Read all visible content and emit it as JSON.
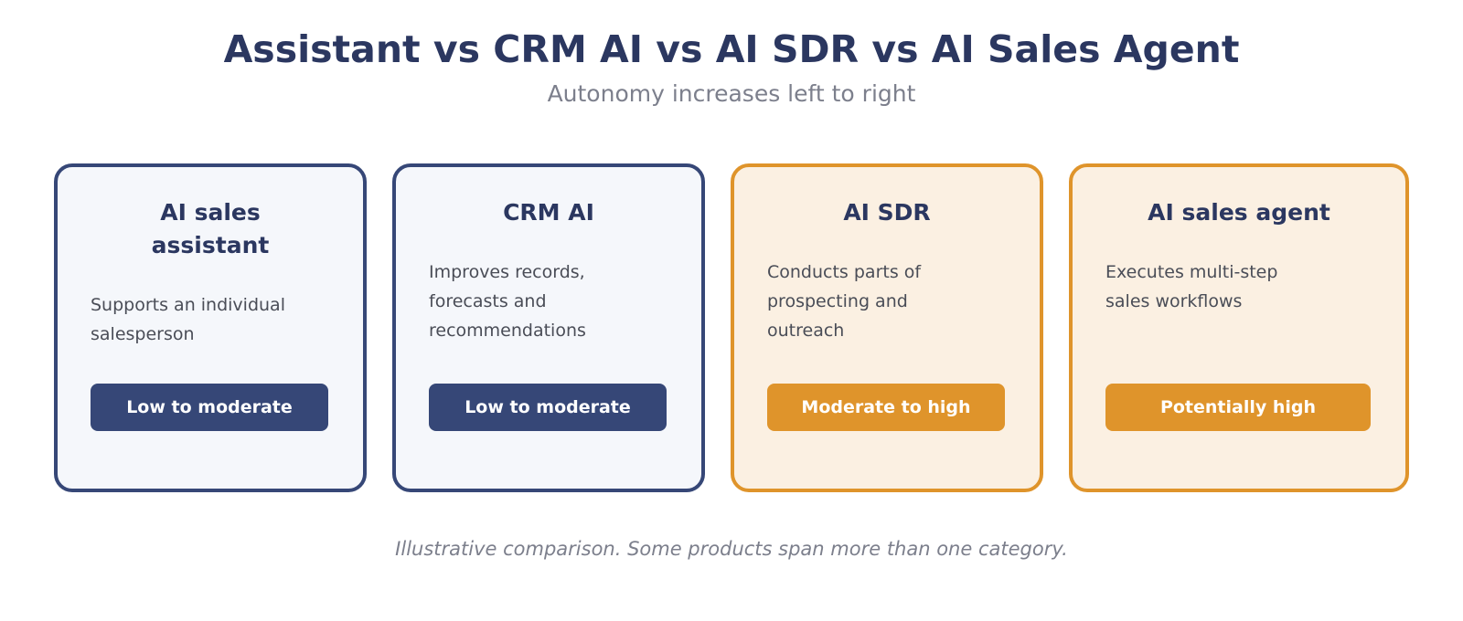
{
  "header": {
    "title": "Assistant vs CRM AI vs AI SDR vs AI Sales Agent",
    "subtitle": "Autonomy increases left to right"
  },
  "cards": [
    {
      "title": "AI sales assistant",
      "description": "Supports an individual salesperson",
      "autonomy": "Low to moderate",
      "accent": "#364777"
    },
    {
      "title": "CRM AI",
      "description": "Improves records, forecasts and recommendations",
      "autonomy": "Low to moderate",
      "accent": "#364777"
    },
    {
      "title": "AI SDR",
      "description": "Conducts parts of prospecting and outreach",
      "autonomy": "Moderate to high",
      "accent": "#df942b"
    },
    {
      "title": "AI sales agent",
      "description": "Executes multi-step sales workflows",
      "autonomy": "Potentially high",
      "accent": "#df942b"
    }
  ],
  "footnote": "Illustrative comparison. Some products span more than one category.",
  "colors": {
    "navy": "#364777",
    "amber": "#df942b",
    "title_text": "#2b3760"
  }
}
